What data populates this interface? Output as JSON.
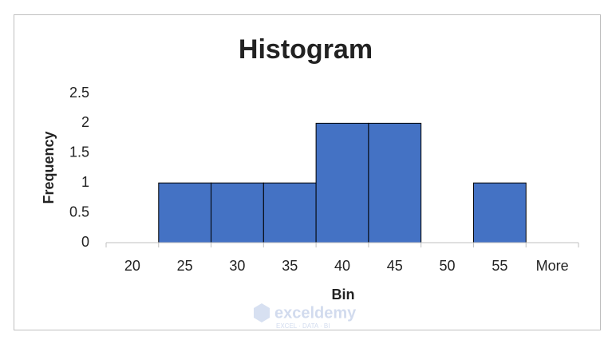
{
  "chart_data": {
    "type": "bar",
    "title": "Histogram",
    "x_label": "Bin",
    "y_label": "Frequency",
    "categories": [
      "20",
      "25",
      "30",
      "35",
      "40",
      "45",
      "50",
      "55",
      "More"
    ],
    "values": [
      0,
      1,
      1,
      1,
      2,
      2,
      0,
      1,
      0
    ],
    "color": "#4472c4",
    "ylim": [
      0,
      2.5
    ],
    "yticks": [
      0,
      0.5,
      1,
      1.5,
      2,
      2.5
    ],
    "grid": false,
    "watermark": {
      "name": "exceldemy",
      "tagline": "EXCEL · DATA · BI"
    }
  }
}
